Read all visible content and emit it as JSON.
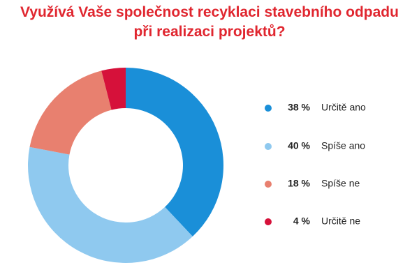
{
  "chart_data": {
    "type": "donut",
    "title": "Využívá Vaše společnost recyklaci stavebního odpadu při realizaci projektů?",
    "categories": [
      "Určitě ano",
      "Spíše ano",
      "Spíše ne",
      "Určitě ne"
    ],
    "values": [
      38,
      40,
      18,
      4
    ],
    "value_labels": [
      "38 %",
      "40 %",
      "18 %",
      "4 %"
    ],
    "colors": [
      "#1a8fd8",
      "#8fc9ef",
      "#e8806f",
      "#d6113a"
    ],
    "legend": "right"
  }
}
